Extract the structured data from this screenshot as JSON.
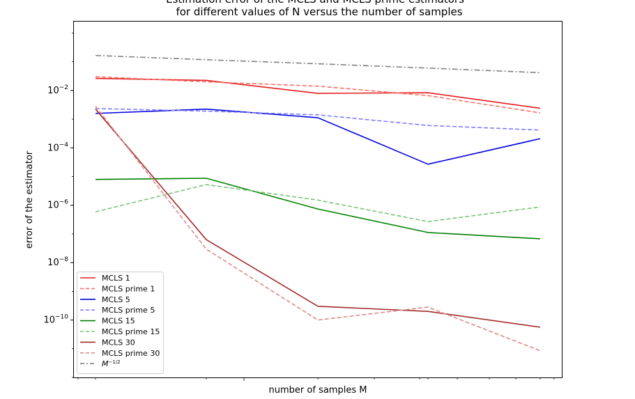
{
  "chart_data": {
    "type": "line",
    "title_lines": [
      "Estimation error of the MCLS and MCLS prime estimators",
      "for different values of N versus the number of samples"
    ],
    "xlabel": "number of samples M",
    "ylabel": "error of the estimator",
    "y_scale": "log",
    "ylim_exp": [
      -12,
      0.4
    ],
    "y_tick_labels": [
      {
        "exp": -10,
        "label": "10",
        "sup": "−10"
      },
      {
        "exp": -8,
        "label": "10",
        "sup": "−8"
      },
      {
        "exp": -6,
        "label": "10",
        "sup": "−6"
      },
      {
        "exp": -4,
        "label": "10",
        "sup": "−4"
      },
      {
        "exp": -2,
        "label": "10",
        "sup": "−2"
      }
    ],
    "x_points": [
      1,
      2,
      3,
      4,
      5
    ],
    "legend_position": "lower-left",
    "grid": false,
    "series": [
      {
        "name": "MCLS 1",
        "color": "#e41a1c",
        "dash": "solid",
        "opacity": 1.0,
        "values_log10": [
          -1.58,
          -1.65,
          -2.1,
          -2.08,
          -2.62
        ]
      },
      {
        "name": "MCLS prime 1",
        "color": "#ff6f69",
        "dash": "dashed",
        "opacity": 1.0,
        "values_log10": [
          -1.52,
          -1.7,
          -1.85,
          -2.18,
          -2.78
        ]
      },
      {
        "name": "MCLS 5",
        "color": "#0000dd",
        "dash": "solid",
        "opacity": 1.0,
        "values_log10": [
          -2.8,
          -2.65,
          -2.95,
          -4.57,
          -3.68
        ]
      },
      {
        "name": "MCLS prime 5",
        "color": "#7d7dff",
        "dash": "dashed",
        "opacity": 1.0,
        "values_log10": [
          -2.63,
          -2.72,
          -2.85,
          -3.22,
          -3.38
        ]
      },
      {
        "name": "MCLS 15",
        "color": "#008000",
        "dash": "solid",
        "opacity": 1.0,
        "values_log10": [
          -5.1,
          -5.06,
          -6.13,
          -6.95,
          -7.17
        ]
      },
      {
        "name": "MCLS prime 15",
        "color": "#7bc47b",
        "dash": "dashed",
        "opacity": 1.0,
        "values_log10": [
          -6.23,
          -5.28,
          -5.82,
          -6.57,
          -6.06
        ]
      },
      {
        "name": "MCLS 30",
        "color": "#a52a2a",
        "dash": "solid",
        "opacity": 1.0,
        "values_log10": [
          -2.65,
          -7.2,
          -9.52,
          -9.7,
          -10.25
        ]
      },
      {
        "name": "MCLS prime 30",
        "color": "#dd8a8a",
        "dash": "dashed",
        "opacity": 1.0,
        "values_log10": [
          -2.55,
          -7.53,
          -10.0,
          -9.55,
          -11.07
        ]
      },
      {
        "name": "M",
        "name_sup": "−1/2",
        "color": "#808080",
        "dash": "dashdot",
        "opacity": 1.0,
        "values_log10": [
          -0.78,
          -0.93,
          -1.07,
          -1.22,
          -1.38
        ]
      }
    ]
  }
}
